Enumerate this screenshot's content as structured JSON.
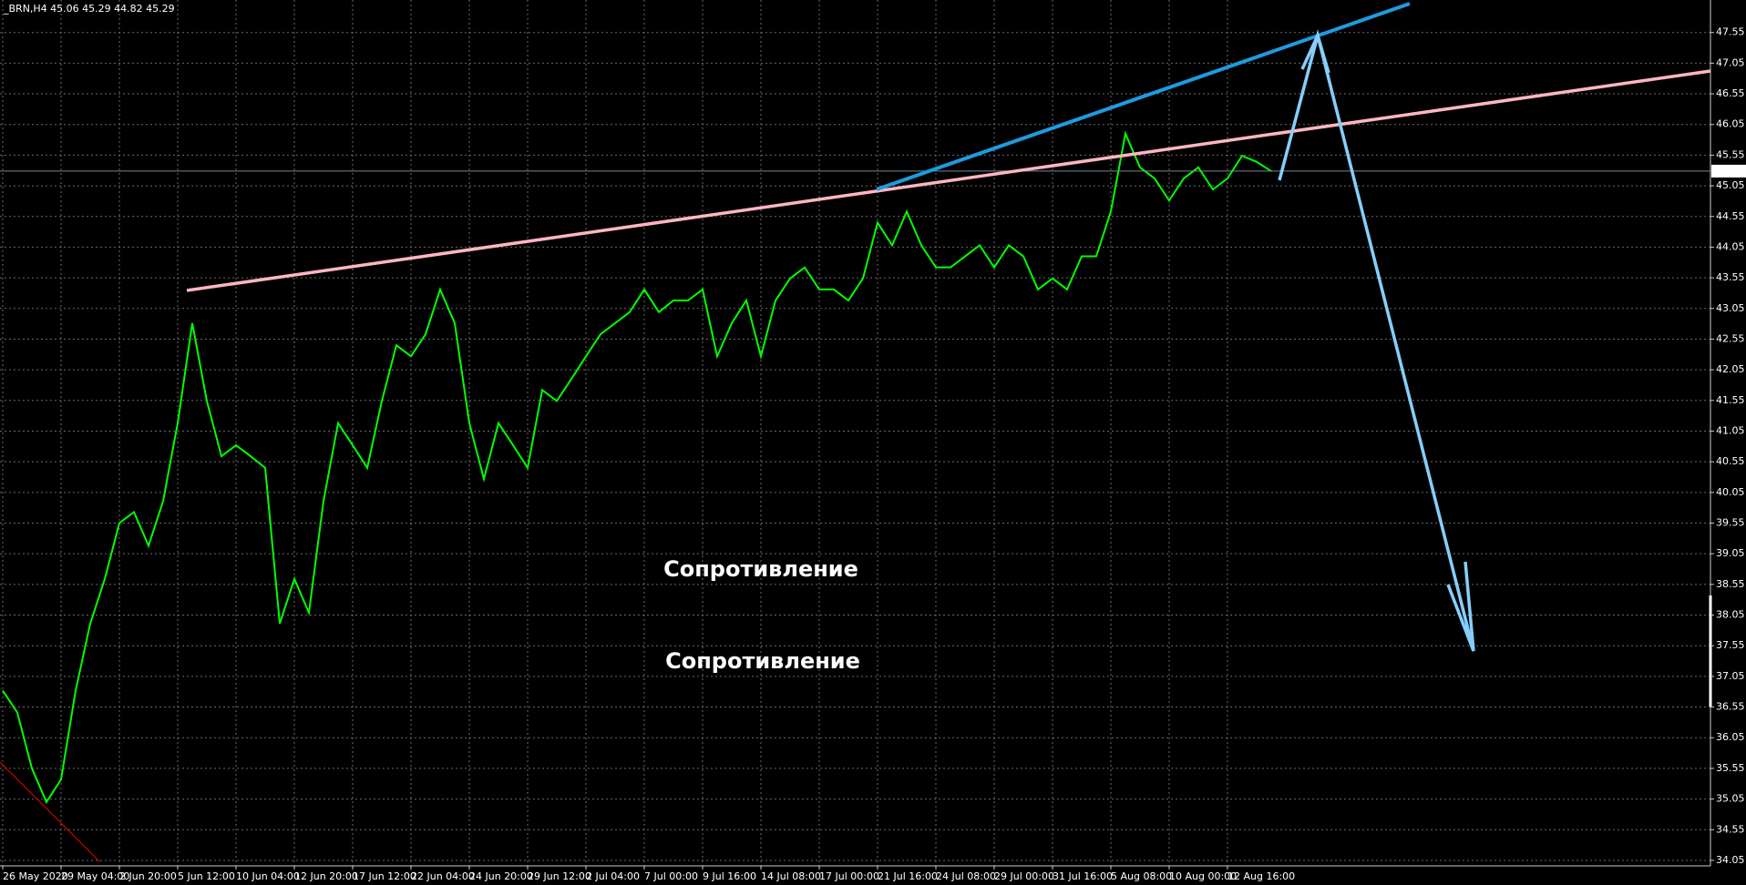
{
  "chart_data": {
    "type": "line",
    "title": "_BRN,H4  45.06 45.29 44.82 45.29",
    "categories": [
      "26 May 2020",
      null,
      null,
      null,
      "29 May 04:00",
      null,
      null,
      null,
      "2 Jun 20:00",
      null,
      null,
      null,
      "5 Jun 12:00",
      null,
      null,
      null,
      "10 Jun 04:00",
      null,
      null,
      null,
      "12 Jun 20:00",
      null,
      null,
      null,
      "17 Jun 12:00",
      null,
      null,
      null,
      "22 Jun 04:00",
      null,
      null,
      null,
      "24 Jun 20:00",
      null,
      null,
      null,
      "29 Jun 12:00",
      null,
      null,
      null,
      "2 Jul 04:00",
      null,
      null,
      null,
      "7 Jul 00:00",
      null,
      null,
      null,
      "9 Jul 16:00",
      null,
      null,
      null,
      "14 Jul 08:00",
      null,
      null,
      null,
      "17 Jul 00:00",
      null,
      null,
      null,
      "21 Jul 16:00",
      null,
      null,
      null,
      "24 Jul 08:00",
      null,
      null,
      null,
      "29 Jul 00:00",
      null,
      null,
      null,
      "31 Jul 16:00",
      null,
      null,
      null,
      "5 Aug 08:00",
      null,
      null,
      null,
      "10 Aug 00:00",
      null,
      null,
      null,
      "12 Aug 16:00",
      null,
      null,
      null
    ],
    "series": [
      {
        "name": "_BRN,H4",
        "color": "#00ff00",
        "values": [
          36.82,
          36.46,
          35.55,
          35.0,
          35.37,
          36.82,
          37.91,
          38.64,
          39.55,
          39.73,
          39.18,
          39.91,
          41.18,
          42.81,
          41.54,
          40.64,
          40.82,
          40.64,
          40.45,
          37.91,
          38.64,
          38.09,
          39.91,
          41.18,
          40.82,
          40.45,
          41.54,
          42.45,
          42.27,
          42.63,
          43.36,
          42.81,
          41.18,
          40.27,
          41.18,
          40.82,
          40.45,
          41.72,
          41.54,
          41.9,
          42.27,
          42.63,
          42.81,
          42.99,
          43.36,
          42.99,
          43.18,
          43.18,
          43.36,
          42.27,
          42.81,
          43.18,
          42.27,
          43.18,
          43.54,
          43.72,
          43.36,
          43.36,
          43.18,
          43.54,
          44.45,
          44.08,
          44.63,
          44.08,
          43.72,
          43.72,
          43.9,
          44.08,
          43.72,
          44.08,
          43.9,
          43.36,
          43.54,
          43.36,
          43.9,
          43.9,
          44.63,
          45.9,
          45.35,
          45.17,
          44.81,
          45.17,
          45.35,
          44.99,
          45.17,
          45.54,
          45.44,
          45.29
        ]
      }
    ],
    "bid": 45.29,
    "ylim": [
      33.96,
      48.08
    ],
    "yticks": [
      47.55,
      47.05,
      46.55,
      46.05,
      45.55,
      45.05,
      44.55,
      44.05,
      43.55,
      43.05,
      42.55,
      42.05,
      41.55,
      41.05,
      40.55,
      40.05,
      39.55,
      39.05,
      38.55,
      38.05,
      37.55,
      37.05,
      36.55,
      36.05,
      35.55,
      35.05,
      34.55,
      34.05
    ],
    "grid": true,
    "annotations": [
      {
        "text": "Сопротивление",
        "color": "#ffb6c1"
      },
      {
        "text": "Сопротивление",
        "color": "#1e90ff"
      }
    ]
  }
}
